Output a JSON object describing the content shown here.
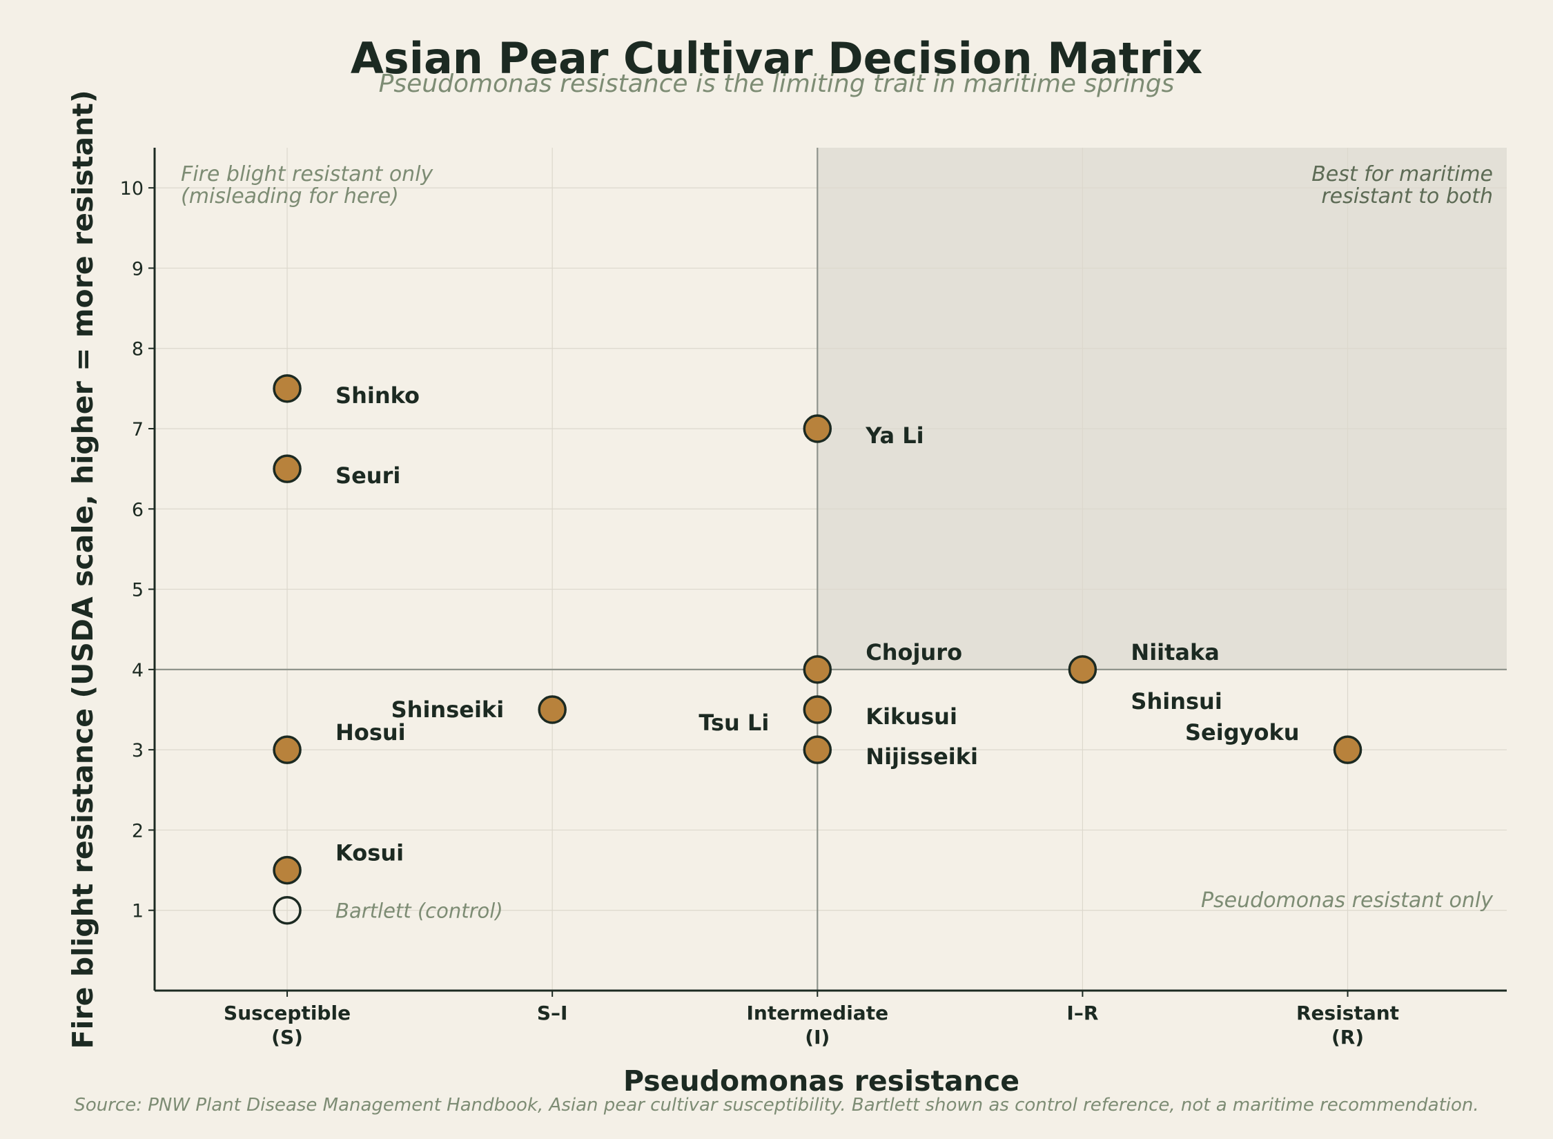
{
  "title": "Asian Pear Cultivar Decision Matrix",
  "subtitle": "Pseudomonas resistance is the limiting trait in maritime springs",
  "source": "Source: PNW Plant Disease Management Handbook, Asian pear cultivar susceptibility. Bartlett shown as control reference, not a maritime recommendation.",
  "colors": {
    "background": "#f4f0e7",
    "marker": "#b8823c",
    "marker_edge": "#1c2a22",
    "highlight_zone": "#e3e0d7",
    "text_dark": "#1c2a22",
    "text_muted": "#7d8c74"
  },
  "chart_data": {
    "type": "scatter",
    "xlabel": "Pseudomonas resistance",
    "ylabel": "Fire blight resistance (USDA scale, higher = more resistant)",
    "x_categories": [
      {
        "line1": "Susceptible",
        "line2": "(S)"
      },
      {
        "line1": "S–I",
        "line2": ""
      },
      {
        "line1": "Intermediate",
        "line2": "(I)"
      },
      {
        "line1": "I–R",
        "line2": ""
      },
      {
        "line1": "Resistant",
        "line2": "(R)"
      }
    ],
    "xlim": [
      -0.5,
      4.6
    ],
    "ylim": [
      0,
      10.5
    ],
    "yticks": [
      1,
      2,
      3,
      4,
      5,
      6,
      7,
      8,
      9,
      10
    ],
    "grid": true,
    "thresholds": {
      "x": 2,
      "y": 4
    },
    "points": [
      {
        "name": "Shinko",
        "x": 0,
        "y": 7.5
      },
      {
        "name": "Seuri",
        "x": 0,
        "y": 6.5
      },
      {
        "name": "Hosui",
        "x": 0,
        "y": 3
      },
      {
        "name": "Kosui",
        "x": 0,
        "y": 1.5
      },
      {
        "name": "Bartlett (control)",
        "x": 0,
        "y": 1,
        "control": true
      },
      {
        "name": "Shinseiki",
        "x": 1,
        "y": 3.5
      },
      {
        "name": "Ya Li",
        "x": 2,
        "y": 7
      },
      {
        "name": "Chojuro",
        "x": 2,
        "y": 4
      },
      {
        "name": "Kikusui",
        "x": 2,
        "y": 3.5
      },
      {
        "name": "Nijisseiki",
        "x": 2,
        "y": 3
      },
      {
        "name": "Tsu Li",
        "x": 2,
        "y": 3.3
      },
      {
        "name": "Niitaka",
        "x": 3,
        "y": 4
      },
      {
        "name": "Shinsui",
        "x": 3,
        "y": 4
      },
      {
        "name": "Seigyoku",
        "x": 4,
        "y": 3
      }
    ],
    "quadrant_annotations": {
      "top_left": [
        "Fire blight resistant only",
        "(misleading for here)"
      ],
      "top_right": [
        "Best for maritime",
        "resistant to both"
      ],
      "bottom_right": [
        "Pseudomonas resistant only"
      ]
    }
  }
}
